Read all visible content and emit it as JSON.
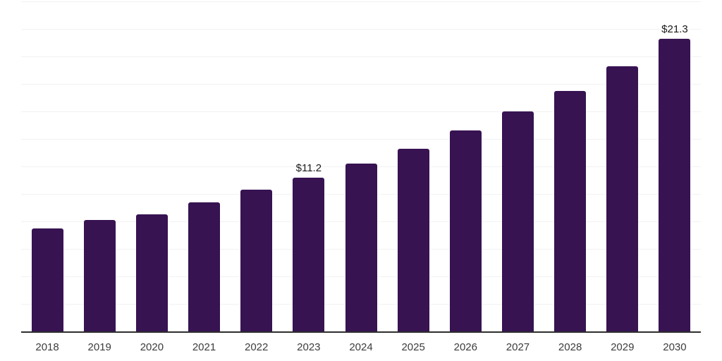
{
  "chart_data": {
    "type": "bar",
    "title": "",
    "xlabel": "",
    "ylabel": "",
    "categories": [
      "2018",
      "2019",
      "2020",
      "2021",
      "2022",
      "2023",
      "2024",
      "2025",
      "2026",
      "2027",
      "2028",
      "2029",
      "2030"
    ],
    "values": [
      7.5,
      8.1,
      8.5,
      9.4,
      10.3,
      11.2,
      12.2,
      13.3,
      14.6,
      16.0,
      17.5,
      19.3,
      21.3
    ],
    "data_labels": [
      {
        "category": "2023",
        "text": "$11.2"
      },
      {
        "category": "2030",
        "text": "$21.3"
      }
    ],
    "ylim": [
      0,
      24
    ],
    "grid_step": 2,
    "grid": true,
    "legend": false,
    "colors": {
      "bar": "#371352",
      "gridline": "#f3f2f4",
      "axis_line": "#2e2e2e",
      "tick_label": "#3c3c3c",
      "data_label": "#1a1a1a",
      "background": "#ffffff"
    }
  }
}
